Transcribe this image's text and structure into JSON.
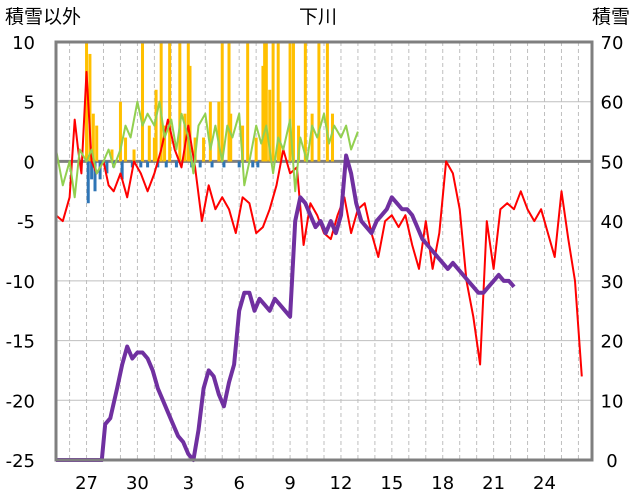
{
  "chart_data": {
    "type": "line",
    "title": "下川",
    "ylabel_left": "積雪以外",
    "ylabel_right": "積雪",
    "ylim_left": [
      -25,
      10
    ],
    "ylim_right": [
      0,
      70
    ],
    "yticks_left": [
      "10",
      "5",
      "0",
      "-5",
      "-10",
      "-15",
      "-20",
      "-25"
    ],
    "yticks_right": [
      "70",
      "60",
      "50",
      "40",
      "30",
      "20",
      "10",
      "0"
    ],
    "xticks": [
      "27",
      "30",
      "3",
      "6",
      "9",
      "12",
      "15",
      "18",
      "21",
      "24"
    ],
    "xlim": [
      25.2,
      26.8
    ],
    "series": [
      {
        "axis": "left",
        "color": "#ff0000",
        "x": [
          25.2,
          25.6,
          26.0,
          26.3,
          26.5,
          26.7,
          27.0,
          27.3,
          27.6,
          28.0,
          28.3,
          28.6,
          29.0,
          29.4,
          29.8,
          30.2,
          30.6,
          31.0,
          31.4,
          31.8,
          32.2,
          32.6,
          33.0,
          33.4,
          33.8,
          34.2,
          34.6,
          35.0,
          35.4,
          35.8,
          36.2,
          36.6,
          37.0,
          37.4,
          37.8,
          38.2,
          38.6,
          39.0,
          39.4,
          39.8,
          40.2,
          40.6,
          41.0,
          41.4,
          41.8,
          42.2,
          42.6,
          43.0,
          43.4,
          43.8,
          44.2,
          44.6,
          45.0,
          45.4,
          45.8,
          46.2,
          46.6,
          47.0,
          47.4,
          47.8,
          48.2,
          48.6,
          49.0,
          49.4,
          49.8,
          50.2,
          50.6,
          51.0,
          51.4,
          51.8,
          52.2,
          52.6,
          53.0,
          53.4,
          53.8,
          54.2,
          54.6,
          55.0,
          55.4,
          55.8,
          56.2
        ],
        "values": [
          -4.5,
          -5,
          -3,
          3.5,
          1,
          -1,
          7.5,
          0,
          -1,
          0,
          -2,
          -2.5,
          -1,
          -3,
          0,
          -1,
          -2.5,
          -1,
          1,
          3.5,
          1,
          -0.5,
          3,
          -0.5,
          -5,
          -2,
          -4,
          -3,
          -4,
          -6,
          -3,
          -3.5,
          -6,
          -5.5,
          -4,
          -2,
          1,
          -1,
          -0.5,
          -7,
          -3.5,
          -4.5,
          -6,
          -6.5,
          -4.5,
          -3,
          -6,
          -4,
          -3.5,
          -6,
          -8,
          -5,
          -4.5,
          -5.5,
          -4.5,
          -7,
          -9,
          -5,
          -9,
          -6,
          0,
          -1,
          -4,
          -10,
          -13,
          -17,
          -5,
          -9,
          -4,
          -3.5,
          -4,
          -2.5,
          -4,
          -5,
          -4,
          -6,
          -8,
          -2.5,
          -6.5,
          -10,
          -18
        ],
        "thin": true
      },
      {
        "axis": "left",
        "color": "#92d050",
        "x": [
          25.2,
          25.6,
          26.0,
          26.3,
          26.6,
          27.0,
          27.3,
          27.6,
          28.0,
          28.3,
          28.6,
          29.0,
          29.3,
          29.6,
          30.0,
          30.3,
          30.6,
          31.0,
          31.3,
          31.6,
          32.0,
          32.3,
          32.6,
          33.0,
          33.3,
          33.6,
          34.0,
          34.3,
          34.6,
          35.0,
          35.3,
          35.6,
          36.0,
          36.3,
          36.6,
          37.0,
          37.3,
          37.6,
          38.0,
          38.3,
          38.6,
          39.0,
          39.3,
          39.6,
          40.0,
          40.3,
          40.6,
          41.0,
          41.3,
          41.6,
          42.0,
          42.3,
          42.6,
          43.0
        ],
        "values": [
          1,
          -2,
          0,
          -3,
          1,
          0,
          1,
          -1,
          0,
          1,
          -0.5,
          1,
          3,
          2,
          5,
          3,
          4,
          3,
          5,
          2,
          3.5,
          1,
          4,
          2,
          -1,
          3,
          4,
          1,
          3,
          0,
          3,
          2,
          4,
          -2,
          0,
          3,
          1.5,
          3,
          -1,
          2,
          1,
          3.5,
          -2.5,
          2,
          0,
          3,
          2,
          4,
          1.5,
          3,
          2,
          3,
          1,
          2.5
        ],
        "thin": true
      },
      {
        "axis": "right",
        "color": "#7030a0",
        "x": [
          25.2,
          26.0,
          27.0,
          27.9,
          28.1,
          28.4,
          28.8,
          29.1,
          29.4,
          29.7,
          30.0,
          30.3,
          30.6,
          30.9,
          31.2,
          31.5,
          31.8,
          32.1,
          32.4,
          32.7,
          33.0,
          33.3,
          33.6,
          33.9,
          34.2,
          34.5,
          34.8,
          35.1,
          35.4,
          35.7,
          36.0,
          36.3,
          36.6,
          36.9,
          37.2,
          37.5,
          37.8,
          38.1,
          38.4,
          38.7,
          39.0,
          39.3,
          39.6,
          39.9,
          40.2,
          40.5,
          40.8,
          41.1,
          41.4,
          41.7,
          42.0,
          42.3,
          42.6,
          42.9,
          43.2,
          43.5,
          43.8,
          44.1,
          44.4,
          44.7,
          45.0,
          45.3,
          45.6,
          45.9,
          46.2,
          46.5,
          46.8,
          47.1,
          47.4,
          47.7,
          48.0,
          48.3,
          48.6,
          48.9,
          49.2,
          49.5,
          49.8,
          50.1,
          50.4,
          50.7,
          51.0,
          51.3,
          51.6,
          51.9,
          52.2
        ],
        "values": [
          0,
          0,
          0,
          0,
          6,
          7,
          12,
          16,
          19,
          17,
          18,
          18,
          17,
          15,
          12,
          10,
          8,
          6,
          4,
          3,
          1,
          0,
          5,
          12,
          15,
          14,
          11,
          9,
          13,
          16,
          25,
          28,
          28,
          25,
          27,
          26,
          25,
          27,
          26,
          25,
          24,
          40,
          44,
          43,
          41,
          39,
          40,
          38,
          40,
          38,
          41,
          51,
          48,
          43,
          40,
          39,
          38,
          40,
          41,
          42,
          44,
          43,
          42,
          42,
          41,
          39,
          37,
          36,
          35,
          34,
          33,
          32,
          33,
          32,
          31,
          30,
          29,
          28,
          28,
          29,
          30,
          31,
          30,
          30,
          29
        ],
        "thick": true
      },
      {
        "axis": "left",
        "color": "#ffc000",
        "kind": "bars",
        "x": [
          27.0,
          27.2,
          27.4,
          27.6,
          28.5,
          29.0,
          29.3,
          29.8,
          30.3,
          30.7,
          31.0,
          31.1,
          31.4,
          31.6,
          31.9,
          32.5,
          32.8,
          33.0,
          33.1,
          33.4,
          33.9,
          34.3,
          34.8,
          35.0,
          35.4,
          35.5,
          36.2,
          36.5,
          37.0,
          37.4,
          37.5,
          37.6,
          37.8,
          38.0,
          38.3,
          38.4,
          39.0,
          39.2,
          39.5,
          39.9,
          40.3,
          40.7,
          41.2,
          41.5
        ],
        "values": [
          10,
          9,
          4,
          3,
          1,
          5,
          2,
          1,
          10,
          3,
          2,
          6,
          10,
          3,
          10,
          10,
          4,
          10,
          8,
          2,
          2,
          5,
          5,
          10,
          10,
          4,
          3,
          10,
          2,
          8,
          10,
          10,
          6,
          10,
          10,
          5,
          10,
          10,
          3,
          10,
          4,
          10,
          10,
          4
        ]
      },
      {
        "axis": "left",
        "color": "#2e75b6",
        "kind": "bars",
        "x": [
          27.1,
          27.3,
          27.5,
          27.8,
          28.2,
          28.6,
          29.1,
          29.7,
          30.2,
          30.6,
          31.2,
          31.7,
          32.3,
          33.2,
          33.7,
          34.4,
          35.1,
          36.0,
          36.8,
          37.1
        ],
        "values": [
          -3.5,
          -1.5,
          -2.5,
          -1.5,
          -1,
          -0.5,
          -1.5,
          -0.5,
          -0.5,
          -0.5,
          -0.5,
          -0.5,
          -0.5,
          -0.5,
          -0.5,
          -0.5,
          -0.5,
          -0.5,
          -0.5,
          -0.5
        ]
      }
    ]
  }
}
